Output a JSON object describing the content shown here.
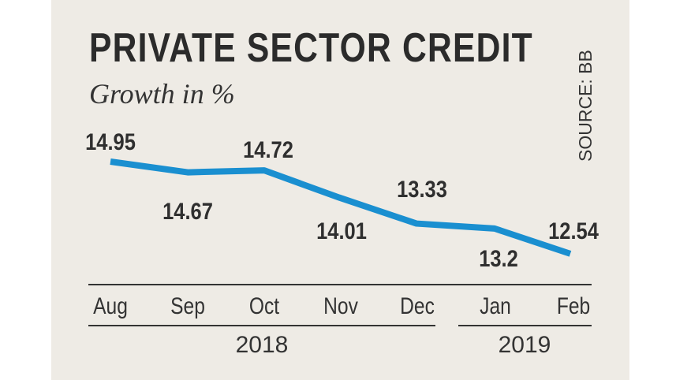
{
  "chart_data": {
    "type": "line",
    "title": "PRIVATE SECTOR CREDIT",
    "subtitle": "Growth in %",
    "source": "SOURCE: BB",
    "categories": [
      "Aug",
      "Sep",
      "Oct",
      "Nov",
      "Dec",
      "Jan",
      "Feb"
    ],
    "year_groups": [
      {
        "label": "2018",
        "months": [
          "Aug",
          "Sep",
          "Oct",
          "Nov",
          "Dec"
        ]
      },
      {
        "label": "2019",
        "months": [
          "Jan",
          "Feb"
        ]
      }
    ],
    "series": [
      {
        "values": [
          14.95,
          14.67,
          14.72,
          14.01,
          13.33,
          13.2,
          12.54
        ],
        "labels": [
          "14.95",
          "14.67",
          "14.72",
          "14.01",
          "13.33",
          "13.2",
          "12.54"
        ]
      }
    ],
    "line_color": "#1a8fd0",
    "background_color": "#eeebe5",
    "grid": false,
    "y_axis_shown": false
  }
}
